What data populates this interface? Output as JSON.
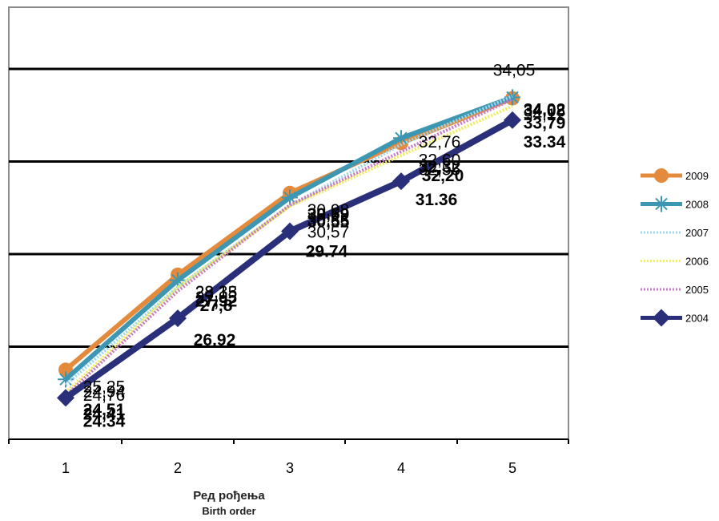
{
  "chart_data": {
    "type": "line",
    "categories": [
      "1",
      "2",
      "3",
      "4",
      "5"
    ],
    "xlabel_line1": "Ред рођења",
    "xlabel_line2": "Birth order",
    "ylim": [
      23,
      37
    ],
    "gridlines": [
      26,
      29,
      32,
      35
    ],
    "series": [
      {
        "name": "2009",
        "color": "#E38A3C",
        "marker": "circle",
        "style": "solid",
        "values": [
          25.25,
          28.33,
          30.98,
          32.6,
          34.05
        ],
        "labels": [
          "25,25",
          "28,33",
          "30,98",
          "32,60",
          "34,05"
        ],
        "bold": false
      },
      {
        "name": "2008",
        "color": "#3E97B2",
        "marker": "star",
        "style": "solid",
        "values": [
          24.94,
          28.15,
          30.83,
          32.76,
          34.08
        ],
        "labels": [
          "24,94",
          "28,15",
          "30,83",
          "32,76",
          "34,08"
        ],
        "bold": false
      },
      {
        "name": "2007",
        "color": "#9ED8EA",
        "marker": "none",
        "style": "dotted",
        "values": [
          24.76,
          27.93,
          30.57,
          32.55,
          34.12
        ],
        "labels": [
          "24,76",
          "27,93",
          "30,57",
          "32,55",
          "34,12"
        ],
        "bold": false
      },
      {
        "name": "2006",
        "color": "#F1EC5A",
        "marker": "none",
        "style": "dotted",
        "values": [
          24.51,
          27.92,
          30.55,
          32.2,
          33.79
        ],
        "labels": [
          "24,51",
          "27,92",
          "30,55",
          "32,20",
          "33,79"
        ],
        "bold": true
      },
      {
        "name": "2005",
        "color": "#C779C3",
        "marker": "none",
        "style": "dotted",
        "values": [
          24.41,
          27.8,
          30.59,
          32.32,
          34.02
        ],
        "labels": [
          "24,41",
          "27,8",
          "30,59",
          "32,32",
          "34,02"
        ],
        "bold": true
      },
      {
        "name": "2004",
        "color": "#2A2F7A",
        "marker": "diamond",
        "style": "solid",
        "values": [
          24.34,
          26.92,
          29.74,
          31.36,
          33.34
        ],
        "labels": [
          "24.34",
          "26.92",
          "29.74",
          "31.36",
          "33.34"
        ],
        "bold": true
      }
    ]
  }
}
